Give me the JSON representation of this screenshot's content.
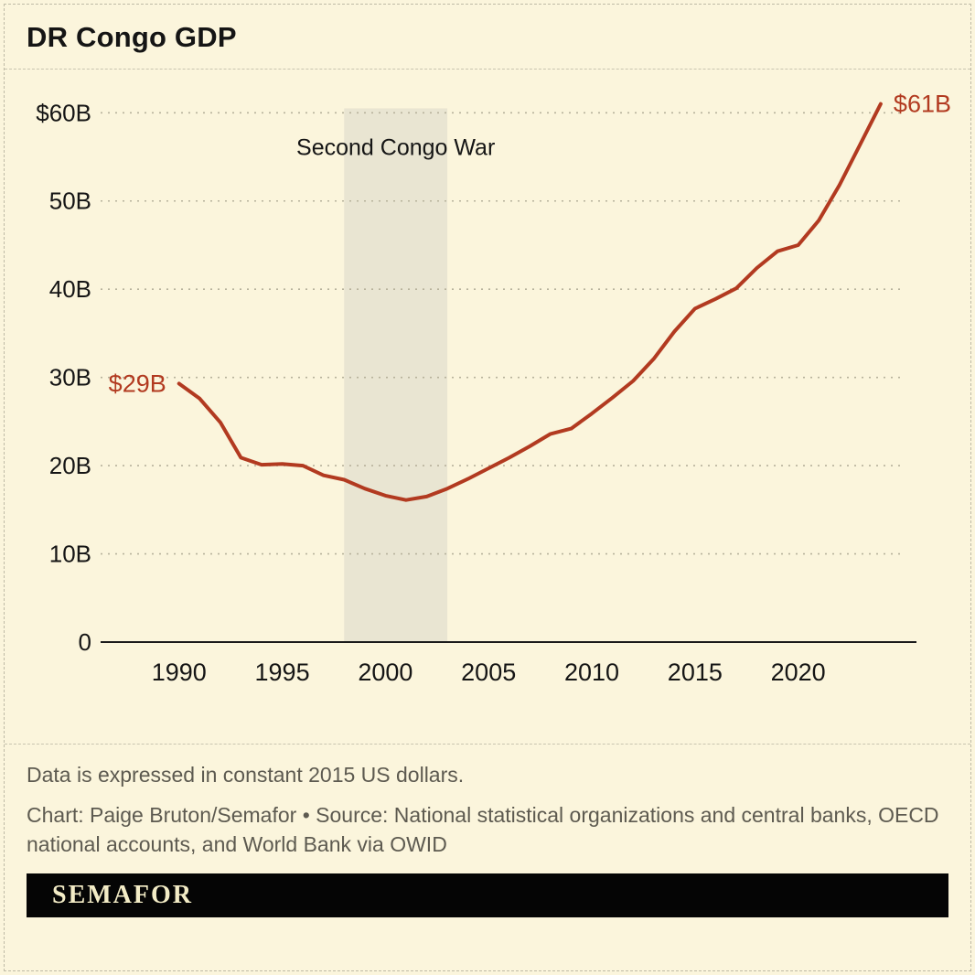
{
  "page": {
    "title": "DR Congo GDP",
    "note": "Data is expressed in constant 2015 US dollars.",
    "credit": "Chart: Paige Bruton/Semafor • Source: National statistical organizations and central banks, OECD national accounts, and World Bank via OWID",
    "brand": "SEMAFOR"
  },
  "colors": {
    "background": "#fbf5dc",
    "line": "#b23a20",
    "annotation": "#b23a20",
    "grid": "#b7b29c",
    "axis": "#1a1a1a",
    "band": "#e9e5d2",
    "text_dark": "#151515",
    "text_gray": "#5d5a50",
    "brand_bg": "#050505",
    "brand_text": "#f3ecc6"
  },
  "chart_data": {
    "type": "line",
    "title": "DR Congo GDP",
    "series_name": "GDP (billions, constant 2015 US$)",
    "x": [
      1990,
      1991,
      1992,
      1993,
      1994,
      1995,
      1996,
      1997,
      1998,
      1999,
      2000,
      2001,
      2002,
      2003,
      2004,
      2005,
      2006,
      2007,
      2008,
      2009,
      2010,
      2011,
      2012,
      2013,
      2014,
      2015,
      2016,
      2017,
      2018,
      2019,
      2020,
      2021,
      2022,
      2023,
      2024
    ],
    "values": [
      29.3,
      27.6,
      24.9,
      20.9,
      20.1,
      20.2,
      20.0,
      18.9,
      18.4,
      17.4,
      16.6,
      16.1,
      16.5,
      17.4,
      18.5,
      19.7,
      20.9,
      22.2,
      23.6,
      24.2,
      25.9,
      27.7,
      29.6,
      32.1,
      35.2,
      37.8,
      38.9,
      40.1,
      42.4,
      44.3,
      45.0,
      47.8,
      51.8,
      56.4,
      61.0
    ],
    "xlim": [
      1986.2,
      2025.2
    ],
    "ylim": [
      0,
      62
    ],
    "grid": "dashed-horizontal",
    "legend": "none",
    "yticks": [
      {
        "value": 60,
        "label": "$60B"
      },
      {
        "value": 50,
        "label": "50B"
      },
      {
        "value": 40,
        "label": "40B"
      },
      {
        "value": 30,
        "label": "30B"
      },
      {
        "value": 20,
        "label": "20B"
      },
      {
        "value": 10,
        "label": "10B"
      },
      {
        "value": 0,
        "label": "0"
      }
    ],
    "xticks": [
      1990,
      1995,
      2000,
      2005,
      2010,
      2015,
      2020
    ],
    "annotations": [
      {
        "text": "$29B",
        "year": 1990,
        "value": 29.3,
        "anchor": "end"
      },
      {
        "text": "$61B",
        "year": 2024,
        "value": 61.0,
        "anchor": "start"
      }
    ],
    "band": {
      "label": "Second Congo War",
      "from": 1998,
      "to": 2003,
      "label_value": 55.2
    }
  }
}
